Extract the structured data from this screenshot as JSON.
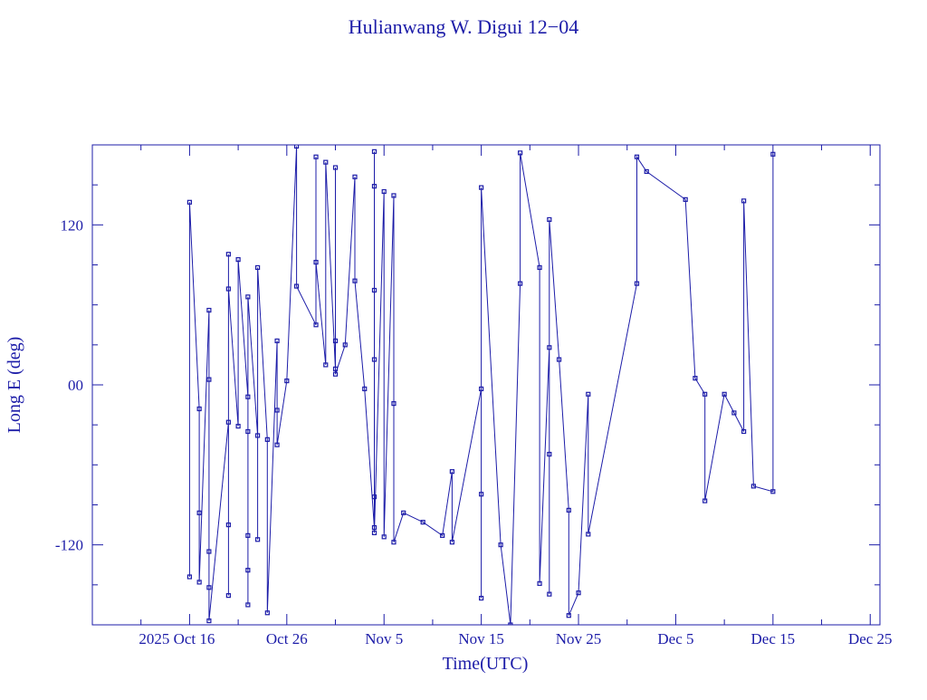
{
  "chart_data": {
    "type": "line",
    "title": "Hulianwang W. Digui 12−04",
    "x_label": "Time(UTC)",
    "y_label": "Long E (deg)",
    "color": "#1c1ca8",
    "x": [
      "2025-10-16",
      "2025-10-16",
      "2025-10-17",
      "2025-10-17",
      "2025-10-17",
      "2025-10-18",
      "2025-10-18",
      "2025-10-18",
      "2025-10-18",
      "2025-10-18",
      "2025-10-20",
      "2025-10-20",
      "2025-10-20",
      "2025-10-20",
      "2025-10-20",
      "2025-10-21",
      "2025-10-21",
      "2025-10-22",
      "2025-10-22",
      "2025-10-22",
      "2025-10-22",
      "2025-10-22",
      "2025-10-22",
      "2025-10-23",
      "2025-10-23",
      "2025-10-23",
      "2025-10-24",
      "2025-10-24",
      "2025-10-25",
      "2025-10-25",
      "2025-10-25",
      "2025-10-26",
      "2025-10-27",
      "2025-10-27",
      "2025-10-29",
      "2025-10-29",
      "2025-10-29",
      "2025-10-30",
      "2025-10-30",
      "2025-10-31",
      "2025-10-31",
      "2025-10-31",
      "2025-10-31",
      "2025-11-01",
      "2025-11-02",
      "2025-11-02",
      "2025-11-03",
      "2025-11-04",
      "2025-11-04",
      "2025-11-04",
      "2025-11-04",
      "2025-11-04",
      "2025-11-04",
      "2025-11-04",
      "2025-11-05",
      "2025-11-05",
      "2025-11-06",
      "2025-11-06",
      "2025-11-06",
      "2025-11-07",
      "2025-11-09",
      "2025-11-11",
      "2025-11-12",
      "2025-11-12",
      "2025-11-15",
      "2025-11-15",
      "2025-11-15",
      "2025-11-15",
      "2025-11-17",
      "2025-11-18",
      "2025-11-19",
      "2025-11-19",
      "2025-11-21",
      "2025-11-21",
      "2025-11-22",
      "2025-11-22",
      "2025-11-22",
      "2025-11-22",
      "2025-11-23",
      "2025-11-24",
      "2025-11-24",
      "2025-11-25",
      "2025-11-26",
      "2025-11-26",
      "2025-12-01",
      "2025-12-01",
      "2025-12-02",
      "2025-12-06",
      "2025-12-07",
      "2025-12-08",
      "2025-12-08",
      "2025-12-10",
      "2025-12-11",
      "2025-12-12",
      "2025-12-12",
      "2025-12-13",
      "2025-12-15",
      "2025-12-15"
    ],
    "values": [
      -144,
      137,
      -18,
      -96,
      -148,
      56,
      4,
      -125,
      -152,
      -177,
      -28,
      -105,
      -158,
      98,
      72,
      -31,
      94,
      -9,
      -35,
      -113,
      -139,
      -165,
      66,
      -38,
      -116,
      88,
      -41,
      -171,
      33,
      -19,
      -45,
      3,
      179,
      74,
      45,
      171,
      92,
      15,
      167,
      12,
      163,
      33,
      8,
      30,
      156,
      78,
      -3,
      -107,
      175,
      149,
      71,
      19,
      -84,
      -111,
      145,
      -114,
      142,
      -14,
      -118,
      -96,
      -103,
      -113,
      -65,
      -118,
      -3,
      -82,
      -160,
      148,
      -120,
      -180,
      76,
      174,
      88,
      -149,
      28,
      -52,
      -157,
      124,
      19,
      -94,
      -173,
      -156,
      -7,
      -112,
      76,
      171,
      160,
      139,
      5,
      -7,
      -87,
      -7,
      -21,
      -35,
      138,
      -76,
      -80,
      173
    ],
    "xlim": [
      "2025-10-06",
      "2025-12-26"
    ],
    "xticks": [
      {
        "value": "2025-10-16",
        "label": "2025 Oct 16"
      },
      {
        "value": "2025-10-26",
        "label": "Oct 26"
      },
      {
        "value": "2025-11-05",
        "label": "Nov  5"
      },
      {
        "value": "2025-11-15",
        "label": "Nov 15"
      },
      {
        "value": "2025-11-25",
        "label": "Nov 25"
      },
      {
        "value": "2025-12-05",
        "label": "Dec  5"
      },
      {
        "value": "2025-12-15",
        "label": "Dec 15"
      },
      {
        "value": "2025-12-25",
        "label": "Dec 25"
      }
    ],
    "xminorticks": [
      "2025-10-11",
      "2025-10-21",
      "2025-10-31",
      "2025-11-10",
      "2025-11-20",
      "2025-11-30",
      "2025-12-10",
      "2025-12-20"
    ],
    "ylim": [
      -180,
      180
    ],
    "yticks": [
      -120,
      {
        "value": 0,
        "label": "00"
      },
      120
    ],
    "yminorticks": [
      -150,
      -90,
      -60,
      -30,
      30,
      60,
      90,
      150
    ]
  }
}
